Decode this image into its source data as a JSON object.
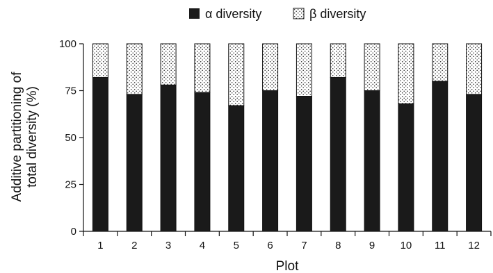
{
  "chart_data": {
    "type": "bar",
    "stacked": true,
    "categories": [
      "1",
      "2",
      "3",
      "4",
      "5",
      "6",
      "7",
      "8",
      "9",
      "10",
      "11",
      "12"
    ],
    "series": [
      {
        "name": "α diversity",
        "values": [
          82,
          73,
          78,
          74,
          67,
          75,
          72,
          82,
          75,
          68,
          80,
          73
        ],
        "color": "#1a1a1a",
        "pattern": "solid"
      },
      {
        "name": "β diversity",
        "values": [
          18,
          27,
          22,
          26,
          33,
          25,
          28,
          18,
          25,
          32,
          20,
          27
        ],
        "color": "#ffffff",
        "pattern": "dotted"
      }
    ],
    "xlabel": "Plot",
    "ylabel_lines": [
      "Additive partitioning of",
      "total diversity (%)"
    ],
    "ylim": [
      0,
      100
    ],
    "yticks": [
      0,
      25,
      50,
      75,
      100
    ],
    "grid": false,
    "legend_position": "top-center"
  }
}
